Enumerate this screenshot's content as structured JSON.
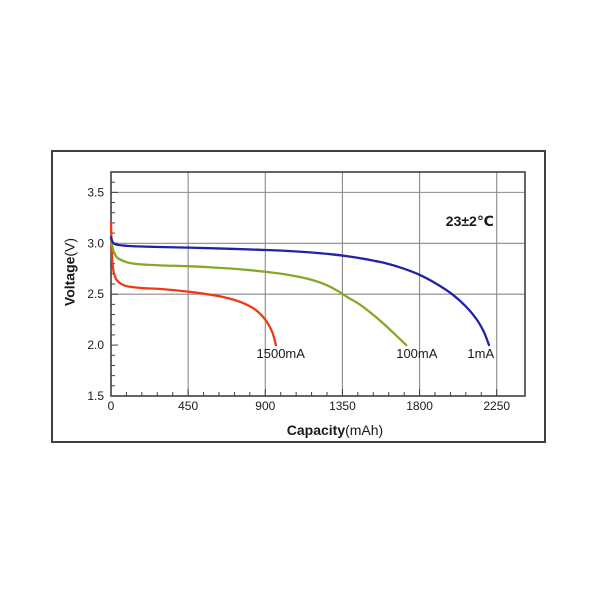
{
  "chart_data": {
    "type": "line",
    "title": "",
    "xlabel_bold": "Capacity",
    "xlabel_regular": "(mAh)",
    "ylabel_bold": "Voltage",
    "ylabel_regular": "(V)",
    "xlim": [
      0,
      2415
    ],
    "ylim": [
      1.5,
      3.7
    ],
    "x_major_ticks": [
      0,
      450,
      900,
      1350,
      1800,
      2250
    ],
    "x_minor_tick_step": 90,
    "y_major_ticks": [
      1.5,
      2.0,
      2.5,
      3.0,
      3.5
    ],
    "y_minor_tick_step": 0.1,
    "x_gridlines": [
      450,
      900,
      1350,
      1800,
      2250
    ],
    "y_gridlines": [
      2.5,
      3.0,
      3.5
    ],
    "grid_on": true,
    "legend_position": "inline-labels",
    "grid_color": "#8a8a8a",
    "frame_color": "#3f3f3f",
    "text_color": "#1a1a1a",
    "annotation": {
      "text": "23±2℃",
      "x": 2093,
      "y": 3.22
    },
    "series": [
      {
        "name": "1500mA",
        "color": "#ee3b17",
        "label": {
          "text": "1500mA",
          "x": 990,
          "y": 1.915
        },
        "points": [
          [
            0,
            3.2
          ],
          [
            4,
            2.95
          ],
          [
            8,
            2.82
          ],
          [
            14,
            2.73
          ],
          [
            22,
            2.68
          ],
          [
            35,
            2.635
          ],
          [
            60,
            2.6
          ],
          [
            100,
            2.575
          ],
          [
            180,
            2.56
          ],
          [
            300,
            2.55
          ],
          [
            450,
            2.525
          ],
          [
            560,
            2.5
          ],
          [
            660,
            2.47
          ],
          [
            760,
            2.42
          ],
          [
            840,
            2.35
          ],
          [
            900,
            2.25
          ],
          [
            940,
            2.13
          ],
          [
            962,
            2.0
          ]
        ]
      },
      {
        "name": "100mA",
        "color": "#85a82a",
        "label": {
          "text": "100mA",
          "x": 1784,
          "y": 1.915
        },
        "points": [
          [
            0,
            3.04
          ],
          [
            8,
            2.97
          ],
          [
            18,
            2.91
          ],
          [
            35,
            2.86
          ],
          [
            60,
            2.835
          ],
          [
            90,
            2.815
          ],
          [
            130,
            2.8
          ],
          [
            200,
            2.79
          ],
          [
            300,
            2.782
          ],
          [
            450,
            2.775
          ],
          [
            600,
            2.762
          ],
          [
            750,
            2.745
          ],
          [
            900,
            2.72
          ],
          [
            1050,
            2.685
          ],
          [
            1150,
            2.65
          ],
          [
            1250,
            2.595
          ],
          [
            1320,
            2.535
          ],
          [
            1380,
            2.47
          ],
          [
            1450,
            2.4
          ],
          [
            1520,
            2.31
          ],
          [
            1590,
            2.21
          ],
          [
            1660,
            2.1
          ],
          [
            1722,
            2.0
          ]
        ]
      },
      {
        "name": "1mA",
        "color": "#2222a8",
        "label": {
          "text": "1mA",
          "x": 2157,
          "y": 1.915
        },
        "points": [
          [
            0,
            3.06
          ],
          [
            10,
            3.01
          ],
          [
            25,
            2.99
          ],
          [
            60,
            2.98
          ],
          [
            120,
            2.972
          ],
          [
            250,
            2.965
          ],
          [
            450,
            2.957
          ],
          [
            650,
            2.948
          ],
          [
            850,
            2.937
          ],
          [
            1000,
            2.928
          ],
          [
            1150,
            2.912
          ],
          [
            1280,
            2.893
          ],
          [
            1400,
            2.868
          ],
          [
            1500,
            2.84
          ],
          [
            1600,
            2.805
          ],
          [
            1700,
            2.755
          ],
          [
            1800,
            2.69
          ],
          [
            1900,
            2.6
          ],
          [
            1990,
            2.5
          ],
          [
            2070,
            2.38
          ],
          [
            2130,
            2.26
          ],
          [
            2175,
            2.13
          ],
          [
            2205,
            2.0
          ]
        ]
      }
    ]
  }
}
